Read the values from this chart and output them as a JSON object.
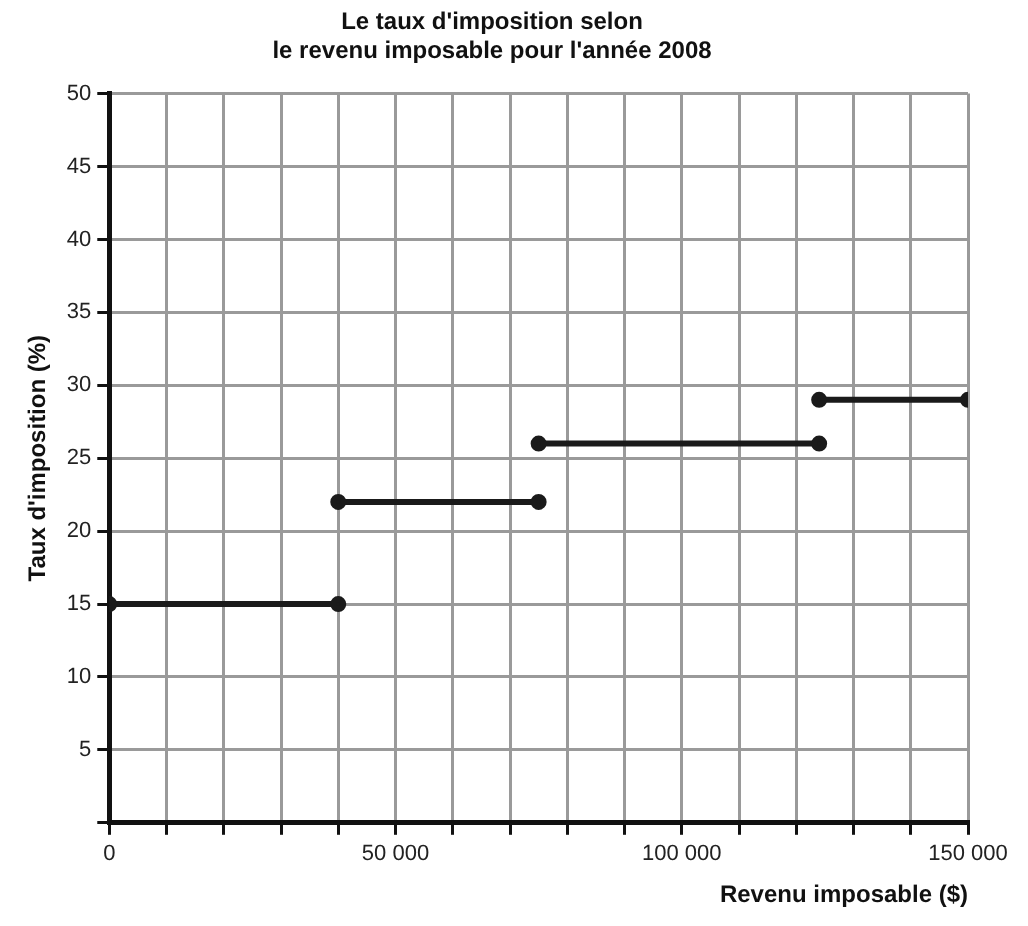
{
  "chart_data": {
    "type": "line",
    "title": "Le taux d'imposition selon\nle revenu imposable pour l'année 2008",
    "xlabel": "Revenu imposable ($)",
    "ylabel": "Taux d'imposition (%)",
    "series": [
      {
        "color": "#1a1a1a",
        "x": [
          0,
          40000
        ],
        "values": [
          15,
          15
        ]
      },
      {
        "color": "#1a1a1a",
        "x": [
          40000,
          75000
        ],
        "values": [
          22,
          22
        ]
      },
      {
        "color": "#1a1a1a",
        "x": [
          75000,
          124000
        ],
        "values": [
          26,
          26
        ]
      },
      {
        "color": "#1a1a1a",
        "x": [
          124000,
          150000
        ],
        "values": [
          29,
          29
        ]
      }
    ],
    "xlim": [
      0,
      150000
    ],
    "xticks": [
      0,
      {
        "value": 10000,
        "label": null
      },
      {
        "value": 20000,
        "label": null
      },
      {
        "value": 30000,
        "label": null
      },
      {
        "value": 40000,
        "label": null
      },
      {
        "value": 50000,
        "label": "50 000"
      },
      {
        "value": 60000,
        "label": null
      },
      {
        "value": 70000,
        "label": null
      },
      {
        "value": 80000,
        "label": null
      },
      {
        "value": 90000,
        "label": null
      },
      {
        "value": 100000,
        "label": "100 000"
      },
      {
        "value": 110000,
        "label": null
      },
      {
        "value": 120000,
        "label": null
      },
      {
        "value": 130000,
        "label": null
      },
      {
        "value": 140000,
        "label": null
      },
      {
        "value": 150000,
        "label": "150 000"
      }
    ],
    "ylim": [
      0,
      50
    ],
    "yticks": [
      {
        "value": 0,
        "label": null
      },
      5,
      10,
      15,
      20,
      25,
      30,
      35,
      40,
      45,
      50
    ],
    "grid": true,
    "legend": false,
    "marker": "circle",
    "line_style": "solid"
  }
}
